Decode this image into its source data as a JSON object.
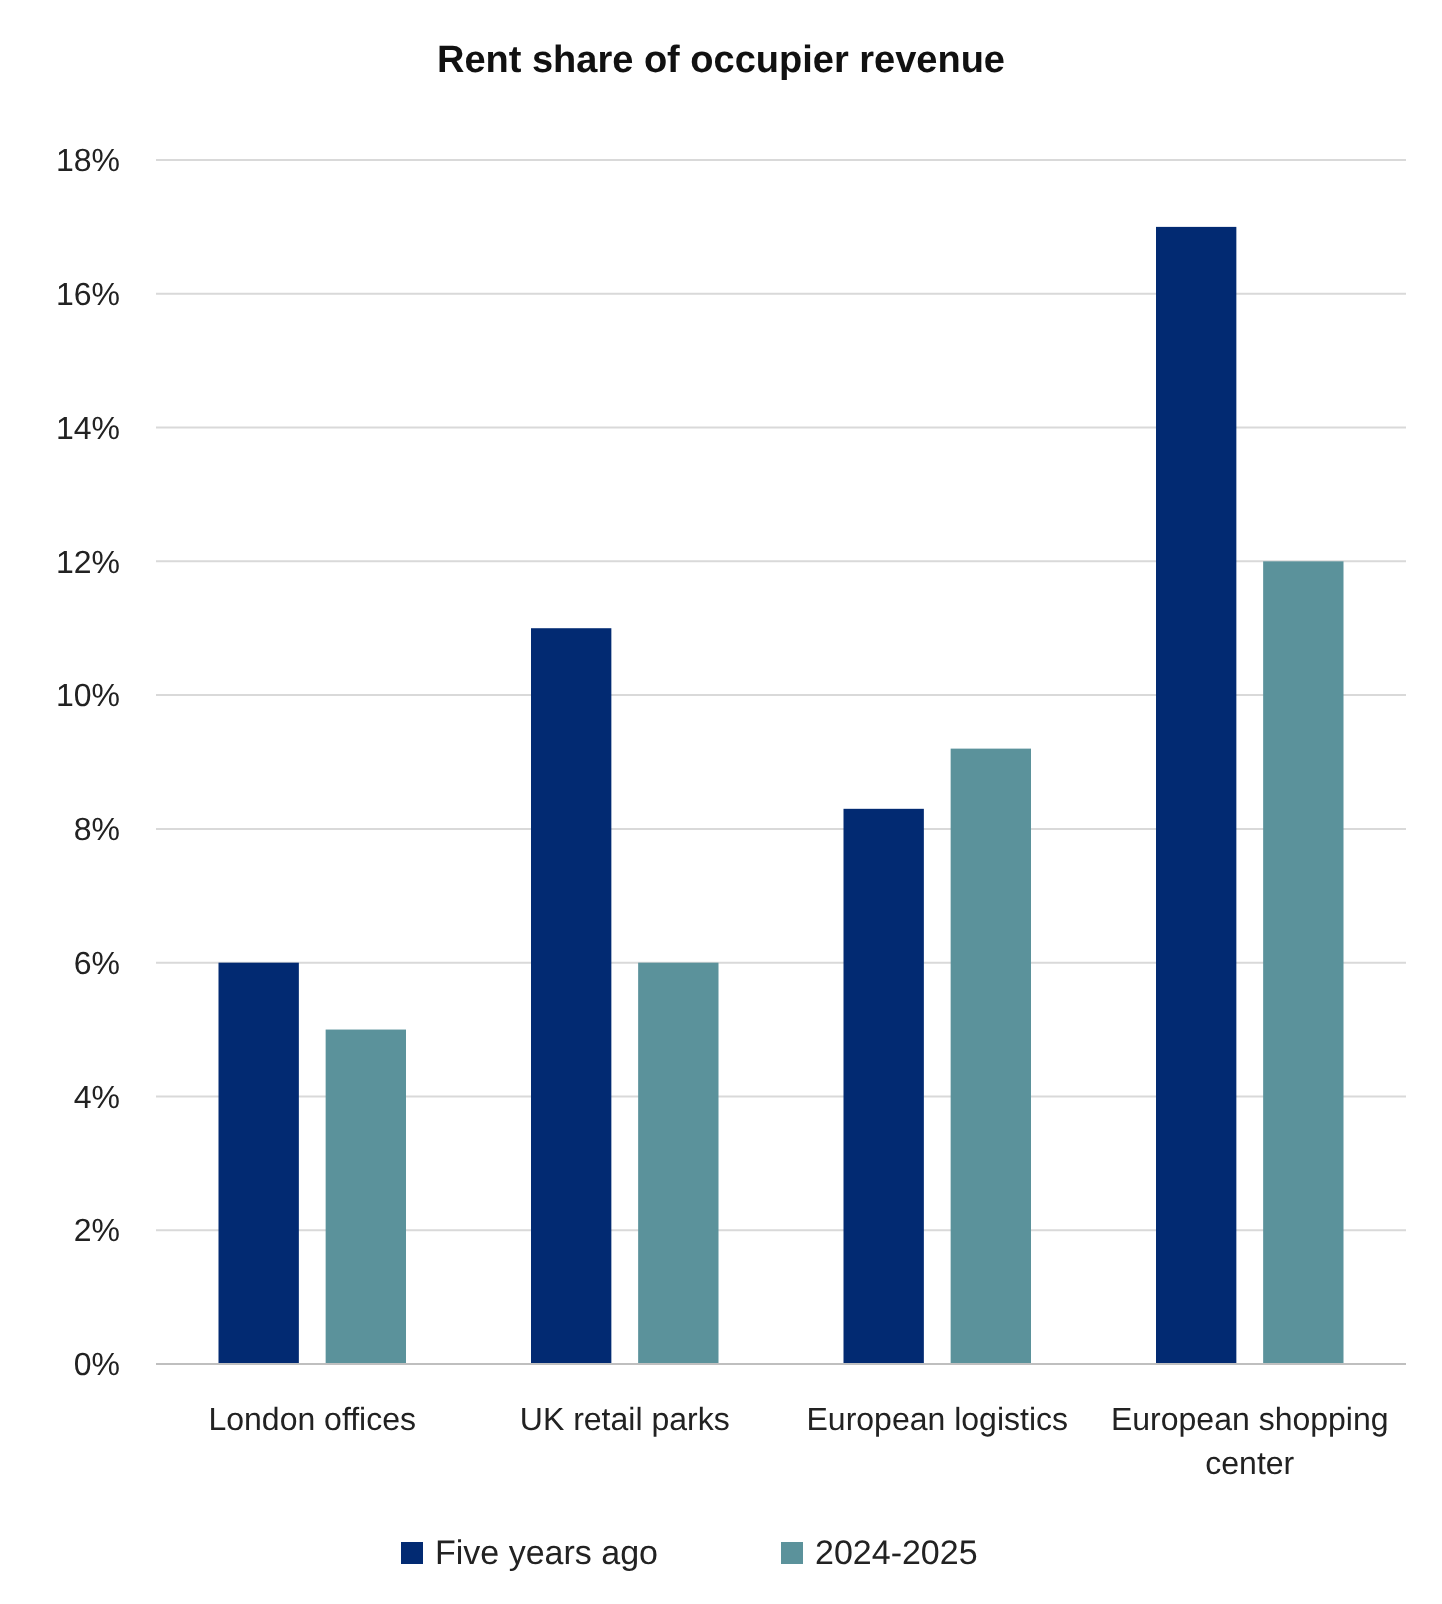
{
  "chart_data": {
    "type": "bar",
    "title": "Rent share of occupier revenue",
    "categories": [
      "London offices",
      "UK retail parks",
      "European logistics",
      "European shopping center"
    ],
    "series": [
      {
        "name": "Five years ago",
        "color": "#022a72",
        "values": [
          6,
          11,
          8.3,
          17
        ]
      },
      {
        "name": "2024-2025",
        "color": "#5b929b",
        "values": [
          5,
          6,
          9.2,
          12
        ]
      }
    ],
    "ylim": [
      0,
      18
    ],
    "yticks": [
      {
        "value": 0,
        "label": "0%"
      },
      {
        "value": 2,
        "label": "2%"
      },
      {
        "value": 4,
        "label": "4%"
      },
      {
        "value": 6,
        "label": "6%"
      },
      {
        "value": 8,
        "label": "8%"
      },
      {
        "value": 10,
        "label": "10%"
      },
      {
        "value": 12,
        "label": "12%"
      },
      {
        "value": 14,
        "label": "14%"
      },
      {
        "value": 16,
        "label": "16%"
      },
      {
        "value": 18,
        "label": "18%"
      }
    ],
    "grid": "y",
    "legend": "bottom"
  }
}
